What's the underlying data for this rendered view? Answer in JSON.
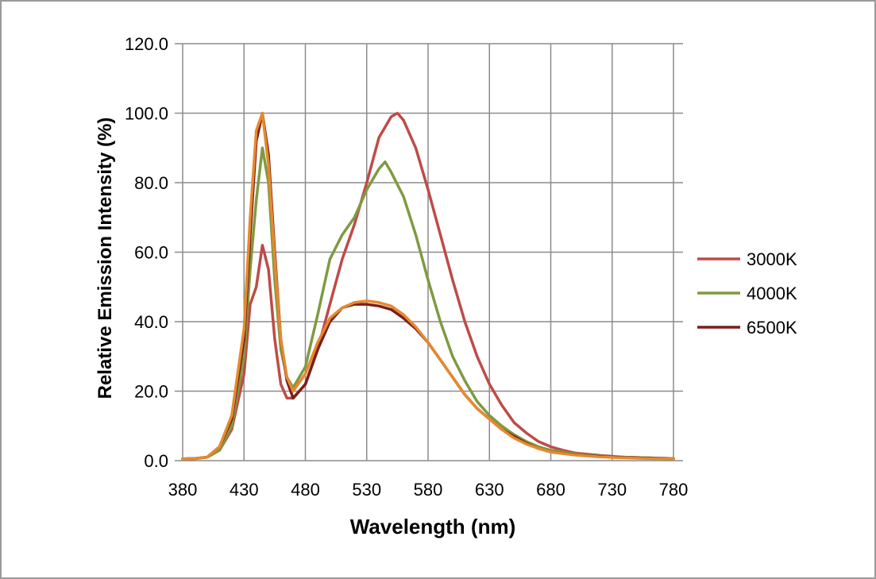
{
  "chart_data": {
    "type": "line",
    "title": "",
    "xlabel": "Wavelength (nm)",
    "ylabel": "Relative Emission Intensity (%)",
    "xlim": [
      380,
      780
    ],
    "ylim": [
      0,
      120
    ],
    "x_ticks": [
      380,
      430,
      480,
      530,
      580,
      630,
      680,
      730,
      780
    ],
    "y_ticks": [
      "0.0",
      "20.0",
      "40.0",
      "60.0",
      "80.0",
      "100.0",
      "120.0"
    ],
    "grid": true,
    "legend_position": "right",
    "series": [
      {
        "name": "3000K",
        "color": "#be4b48",
        "points": [
          [
            380,
            0.5
          ],
          [
            390,
            0.6
          ],
          [
            400,
            1.0
          ],
          [
            410,
            3.0
          ],
          [
            420,
            9.0
          ],
          [
            430,
            25.0
          ],
          [
            435,
            45.0
          ],
          [
            440,
            50.0
          ],
          [
            445,
            62.0
          ],
          [
            450,
            55.0
          ],
          [
            455,
            35.0
          ],
          [
            460,
            22.0
          ],
          [
            465,
            18.0
          ],
          [
            470,
            18.0
          ],
          [
            480,
            22.0
          ],
          [
            490,
            32.0
          ],
          [
            500,
            45.0
          ],
          [
            510,
            58.0
          ],
          [
            520,
            68.0
          ],
          [
            530,
            80.0
          ],
          [
            540,
            93.0
          ],
          [
            550,
            99.0
          ],
          [
            555,
            100.0
          ],
          [
            560,
            98.0
          ],
          [
            570,
            90.0
          ],
          [
            580,
            78.0
          ],
          [
            590,
            65.0
          ],
          [
            600,
            52.0
          ],
          [
            610,
            40.0
          ],
          [
            620,
            30.0
          ],
          [
            630,
            22.0
          ],
          [
            640,
            16.0
          ],
          [
            650,
            11.0
          ],
          [
            660,
            8.0
          ],
          [
            670,
            5.5
          ],
          [
            680,
            4.0
          ],
          [
            690,
            3.0
          ],
          [
            700,
            2.2
          ],
          [
            720,
            1.5
          ],
          [
            740,
            1.0
          ],
          [
            760,
            0.8
          ],
          [
            780,
            0.6
          ]
        ]
      },
      {
        "name": "4000K",
        "color": "#7f9a41",
        "points": [
          [
            380,
            0.5
          ],
          [
            390,
            0.6
          ],
          [
            400,
            1.0
          ],
          [
            410,
            3.0
          ],
          [
            420,
            10.0
          ],
          [
            430,
            30.0
          ],
          [
            435,
            55.0
          ],
          [
            440,
            75.0
          ],
          [
            445,
            90.0
          ],
          [
            450,
            80.0
          ],
          [
            455,
            52.0
          ],
          [
            460,
            32.0
          ],
          [
            465,
            24.0
          ],
          [
            470,
            21.0
          ],
          [
            480,
            27.0
          ],
          [
            490,
            42.0
          ],
          [
            500,
            58.0
          ],
          [
            510,
            65.0
          ],
          [
            520,
            70.0
          ],
          [
            530,
            78.0
          ],
          [
            540,
            84.0
          ],
          [
            545,
            86.0
          ],
          [
            550,
            83.0
          ],
          [
            560,
            76.0
          ],
          [
            570,
            65.0
          ],
          [
            580,
            52.0
          ],
          [
            590,
            40.0
          ],
          [
            600,
            30.0
          ],
          [
            610,
            23.0
          ],
          [
            620,
            17.0
          ],
          [
            630,
            13.0
          ],
          [
            640,
            10.0
          ],
          [
            650,
            7.5
          ],
          [
            660,
            5.5
          ],
          [
            670,
            4.0
          ],
          [
            680,
            3.0
          ],
          [
            700,
            2.0
          ],
          [
            720,
            1.3
          ],
          [
            740,
            1.0
          ],
          [
            760,
            0.8
          ],
          [
            780,
            0.6
          ]
        ]
      },
      {
        "name": "6500K",
        "color": "#7b1f1b",
        "points": [
          [
            380,
            0.5
          ],
          [
            390,
            0.6
          ],
          [
            400,
            1.0
          ],
          [
            410,
            4.0
          ],
          [
            420,
            12.0
          ],
          [
            430,
            35.0
          ],
          [
            435,
            65.0
          ],
          [
            440,
            92.0
          ],
          [
            445,
            100.0
          ],
          [
            450,
            88.0
          ],
          [
            455,
            60.0
          ],
          [
            460,
            35.0
          ],
          [
            465,
            23.0
          ],
          [
            470,
            18.0
          ],
          [
            480,
            22.0
          ],
          [
            490,
            32.0
          ],
          [
            500,
            40.0
          ],
          [
            510,
            44.0
          ],
          [
            520,
            45.0
          ],
          [
            530,
            45.0
          ],
          [
            540,
            44.5
          ],
          [
            550,
            43.5
          ],
          [
            560,
            41.0
          ],
          [
            570,
            38.0
          ],
          [
            580,
            34.0
          ],
          [
            590,
            29.0
          ],
          [
            600,
            24.0
          ],
          [
            610,
            19.0
          ],
          [
            620,
            15.0
          ],
          [
            630,
            12.0
          ],
          [
            640,
            9.0
          ],
          [
            650,
            7.0
          ],
          [
            660,
            5.0
          ],
          [
            670,
            3.5
          ],
          [
            680,
            2.5
          ],
          [
            700,
            1.7
          ],
          [
            720,
            1.2
          ],
          [
            740,
            0.9
          ],
          [
            760,
            0.7
          ],
          [
            780,
            0.5
          ]
        ]
      },
      {
        "name": "",
        "color": "#e6892e",
        "points": [
          [
            380,
            0.5
          ],
          [
            390,
            0.6
          ],
          [
            400,
            1.0
          ],
          [
            410,
            4.0
          ],
          [
            420,
            13.0
          ],
          [
            430,
            38.0
          ],
          [
            435,
            70.0
          ],
          [
            440,
            95.0
          ],
          [
            445,
            100.0
          ],
          [
            450,
            85.0
          ],
          [
            455,
            58.0
          ],
          [
            460,
            35.0
          ],
          [
            465,
            24.0
          ],
          [
            470,
            20.0
          ],
          [
            480,
            25.0
          ],
          [
            490,
            34.0
          ],
          [
            500,
            41.0
          ],
          [
            510,
            44.0
          ],
          [
            520,
            45.5
          ],
          [
            530,
            46.0
          ],
          [
            540,
            45.5
          ],
          [
            550,
            44.5
          ],
          [
            560,
            42.0
          ],
          [
            570,
            38.5
          ],
          [
            580,
            34.0
          ],
          [
            590,
            29.0
          ],
          [
            600,
            24.0
          ],
          [
            610,
            19.0
          ],
          [
            620,
            15.0
          ],
          [
            630,
            12.0
          ],
          [
            640,
            9.0
          ],
          [
            650,
            6.5
          ],
          [
            660,
            4.8
          ],
          [
            670,
            3.5
          ],
          [
            680,
            2.5
          ],
          [
            700,
            1.6
          ],
          [
            720,
            1.1
          ],
          [
            740,
            0.8
          ],
          [
            760,
            0.6
          ],
          [
            780,
            0.5
          ]
        ]
      }
    ]
  }
}
